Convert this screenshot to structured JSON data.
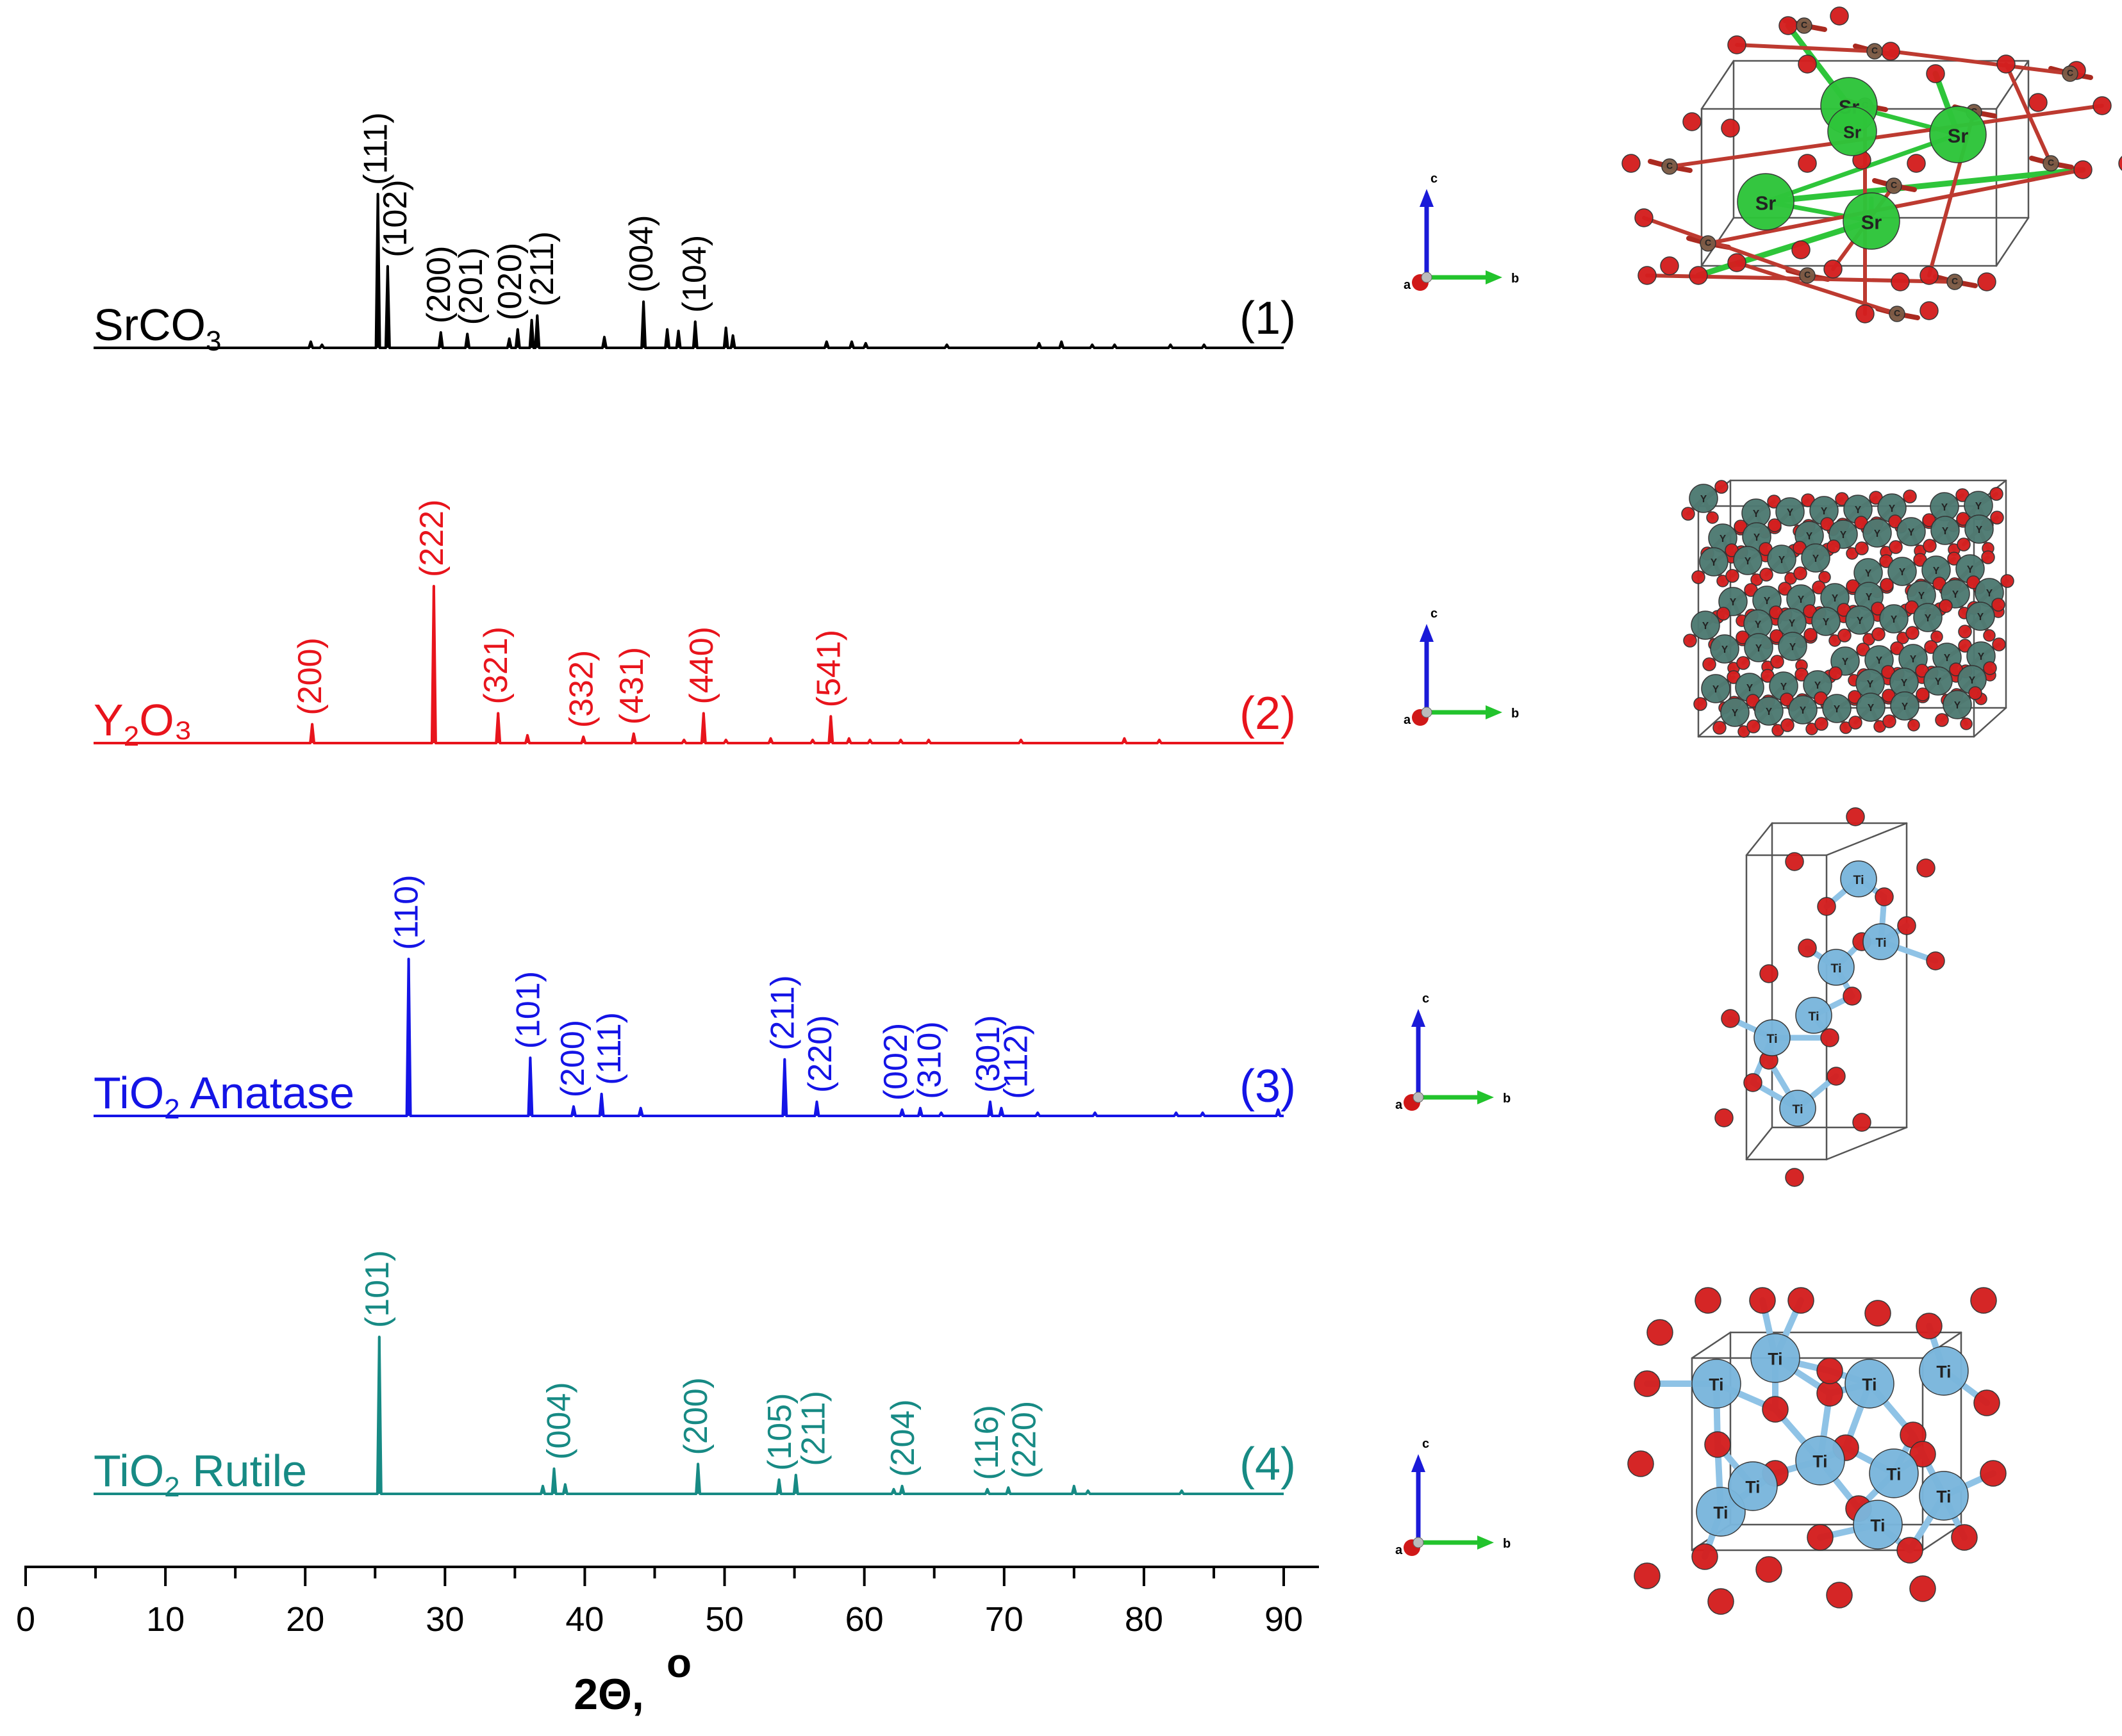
{
  "chart_data": {
    "type": "line",
    "xlabel": "2Θ,",
    "xlabel_unit": "o",
    "xlim": [
      0,
      90
    ],
    "x_ticks": [
      "0",
      "10",
      "20",
      "30",
      "40",
      "50",
      "60",
      "70",
      "80",
      "90"
    ],
    "series": [
      {
        "name_main": "SrCO",
        "name_sub": "3",
        "name_tail": "",
        "number": "(1)",
        "color": "#000000",
        "peaks": [
          {
            "x": 20.4,
            "h": 0.04
          },
          {
            "x": 21.2,
            "h": 0.02
          },
          {
            "x": 25.2,
            "h": 1.0
          },
          {
            "x": 25.9,
            "h": 0.53
          },
          {
            "x": 29.7,
            "h": 0.1
          },
          {
            "x": 31.6,
            "h": 0.09
          },
          {
            "x": 34.6,
            "h": 0.06
          },
          {
            "x": 35.2,
            "h": 0.12
          },
          {
            "x": 36.2,
            "h": 0.18
          },
          {
            "x": 36.6,
            "h": 0.21
          },
          {
            "x": 41.4,
            "h": 0.07
          },
          {
            "x": 44.2,
            "h": 0.3
          },
          {
            "x": 45.9,
            "h": 0.12
          },
          {
            "x": 46.7,
            "h": 0.11
          },
          {
            "x": 47.9,
            "h": 0.17
          },
          {
            "x": 50.1,
            "h": 0.13
          },
          {
            "x": 50.6,
            "h": 0.08
          },
          {
            "x": 57.3,
            "h": 0.04
          },
          {
            "x": 59.1,
            "h": 0.04
          },
          {
            "x": 60.1,
            "h": 0.03
          },
          {
            "x": 65.9,
            "h": 0.02
          },
          {
            "x": 72.5,
            "h": 0.03
          },
          {
            "x": 74.1,
            "h": 0.04
          },
          {
            "x": 76.3,
            "h": 0.02
          },
          {
            "x": 77.9,
            "h": 0.02
          },
          {
            "x": 81.9,
            "h": 0.02
          },
          {
            "x": 84.3,
            "h": 0.02
          }
        ],
        "labels": [
          {
            "text": "(111)",
            "x": 25.2,
            "h": 1.0
          },
          {
            "text": "(102)",
            "x": 26.6,
            "h": 0.53
          },
          {
            "text": "(200)",
            "x": 29.7,
            "h": 0.1
          },
          {
            "text": "(201)",
            "x": 32.0,
            "h": 0.09
          },
          {
            "text": "(020)",
            "x": 34.8,
            "h": 0.12
          },
          {
            "text": "(211)",
            "x": 37.1,
            "h": 0.21
          },
          {
            "text": "(004)",
            "x": 44.2,
            "h": 0.3
          },
          {
            "text": "(104)",
            "x": 48.0,
            "h": 0.17
          }
        ]
      },
      {
        "name_main": "Y",
        "name_sub": "2",
        "name_tail": "O₃",
        "number": "(2)",
        "color": "#e8141c",
        "peaks": [
          {
            "x": 20.5,
            "h": 0.12
          },
          {
            "x": 29.2,
            "h": 1.0
          },
          {
            "x": 33.8,
            "h": 0.19
          },
          {
            "x": 35.9,
            "h": 0.05
          },
          {
            "x": 39.9,
            "h": 0.04
          },
          {
            "x": 43.5,
            "h": 0.06
          },
          {
            "x": 47.1,
            "h": 0.02
          },
          {
            "x": 48.5,
            "h": 0.19
          },
          {
            "x": 50.1,
            "h": 0.02
          },
          {
            "x": 53.3,
            "h": 0.03
          },
          {
            "x": 56.3,
            "h": 0.02
          },
          {
            "x": 57.6,
            "h": 0.17
          },
          {
            "x": 58.9,
            "h": 0.03
          },
          {
            "x": 60.4,
            "h": 0.02
          },
          {
            "x": 62.6,
            "h": 0.02
          },
          {
            "x": 64.6,
            "h": 0.02
          },
          {
            "x": 71.2,
            "h": 0.02
          },
          {
            "x": 78.6,
            "h": 0.03
          },
          {
            "x": 81.1,
            "h": 0.02
          }
        ],
        "labels": [
          {
            "text": "(200)",
            "x": 20.5,
            "h": 0.12
          },
          {
            "text": "(222)",
            "x": 29.2,
            "h": 1.0
          },
          {
            "text": "(321)",
            "x": 33.8,
            "h": 0.19
          },
          {
            "text": "(332)",
            "x": 39.9,
            "h": 0.04
          },
          {
            "text": "(431)",
            "x": 43.5,
            "h": 0.06
          },
          {
            "text": "(440)",
            "x": 48.5,
            "h": 0.19
          },
          {
            "text": "(541)",
            "x": 57.6,
            "h": 0.17
          }
        ]
      },
      {
        "name_main": "TiO",
        "name_sub": "2",
        "name_tail": " Anatase",
        "number": "(3)",
        "color": "#1414e6",
        "peaks": [
          {
            "x": 27.4,
            "h": 1.0
          },
          {
            "x": 36.1,
            "h": 0.37
          },
          {
            "x": 39.2,
            "h": 0.06
          },
          {
            "x": 41.2,
            "h": 0.14
          },
          {
            "x": 44.0,
            "h": 0.05
          },
          {
            "x": 54.3,
            "h": 0.36
          },
          {
            "x": 56.6,
            "h": 0.09
          },
          {
            "x": 62.7,
            "h": 0.04
          },
          {
            "x": 64.0,
            "h": 0.05
          },
          {
            "x": 65.5,
            "h": 0.02
          },
          {
            "x": 69.0,
            "h": 0.09
          },
          {
            "x": 69.8,
            "h": 0.05
          },
          {
            "x": 72.4,
            "h": 0.02
          },
          {
            "x": 76.5,
            "h": 0.02
          },
          {
            "x": 82.3,
            "h": 0.02
          },
          {
            "x": 84.2,
            "h": 0.02
          },
          {
            "x": 89.6,
            "h": 0.04
          }
        ],
        "labels": [
          {
            "text": "(110)",
            "x": 27.4,
            "h": 1.0
          },
          {
            "text": "(101)",
            "x": 36.1,
            "h": 0.37
          },
          {
            "text": "(200)",
            "x": 39.3,
            "h": 0.06
          },
          {
            "text": "(111)",
            "x": 41.9,
            "h": 0.14
          },
          {
            "text": "(211)",
            "x": 54.3,
            "h": 0.36
          },
          {
            "text": "(220)",
            "x": 57.0,
            "h": 0.09
          },
          {
            "text": "(002)",
            "x": 62.4,
            "h": 0.04
          },
          {
            "text": "(310)",
            "x": 64.8,
            "h": 0.05
          },
          {
            "text": "(301)",
            "x": 69.0,
            "h": 0.09
          },
          {
            "text": "(112)",
            "x": 71.0,
            "h": 0.05
          }
        ]
      },
      {
        "name_main": "TiO",
        "name_sub": "2",
        "name_tail": " Rutile",
        "number": "(4)",
        "color": "#178a84",
        "peaks": [
          {
            "x": 25.3,
            "h": 1.0
          },
          {
            "x": 37.0,
            "h": 0.05
          },
          {
            "x": 37.8,
            "h": 0.16
          },
          {
            "x": 38.6,
            "h": 0.06
          },
          {
            "x": 48.1,
            "h": 0.19
          },
          {
            "x": 53.9,
            "h": 0.09
          },
          {
            "x": 55.1,
            "h": 0.12
          },
          {
            "x": 62.1,
            "h": 0.03
          },
          {
            "x": 62.7,
            "h": 0.05
          },
          {
            "x": 68.8,
            "h": 0.03
          },
          {
            "x": 70.3,
            "h": 0.04
          },
          {
            "x": 75.0,
            "h": 0.05
          },
          {
            "x": 76.0,
            "h": 0.02
          },
          {
            "x": 82.7,
            "h": 0.02
          }
        ],
        "labels": [
          {
            "text": "(101)",
            "x": 25.3,
            "h": 1.0
          },
          {
            "text": "(004)",
            "x": 38.3,
            "h": 0.16
          },
          {
            "text": "(200)",
            "x": 48.1,
            "h": 0.19
          },
          {
            "text": "(105)",
            "x": 54.1,
            "h": 0.09
          },
          {
            "text": "(211)",
            "x": 56.5,
            "h": 0.12
          },
          {
            "text": "(204)",
            "x": 62.9,
            "h": 0.05
          },
          {
            "text": "(116)",
            "x": 68.9,
            "h": 0.03
          },
          {
            "text": "(220)",
            "x": 71.6,
            "h": 0.04
          }
        ]
      }
    ]
  },
  "structures": [
    {
      "name": "SrCO3 unit cell",
      "atom_label": "Sr",
      "secondary_label": "C",
      "atom_color": "#2ec53a",
      "oxygen_color": "#d41f1f"
    },
    {
      "name": "Y2O3 unit cell",
      "atom_label": "Y",
      "atom_color": "#4e7a72",
      "oxygen_color": "#d41f1f"
    },
    {
      "name": "TiO2 anatase unit cell",
      "atom_label": "Ti",
      "atom_color": "#7ab6dc",
      "oxygen_color": "#d41f1f"
    },
    {
      "name": "TiO2 rutile unit cell",
      "atom_label": "Ti",
      "atom_color": "#7ab6dc",
      "oxygen_color": "#d41f1f"
    }
  ],
  "axis_triad": {
    "c_label": "c",
    "a_label": "a",
    "b_label": "b",
    "c_color": "#1a1ad8",
    "b_color": "#22c32c",
    "a_color": "#d01818"
  }
}
